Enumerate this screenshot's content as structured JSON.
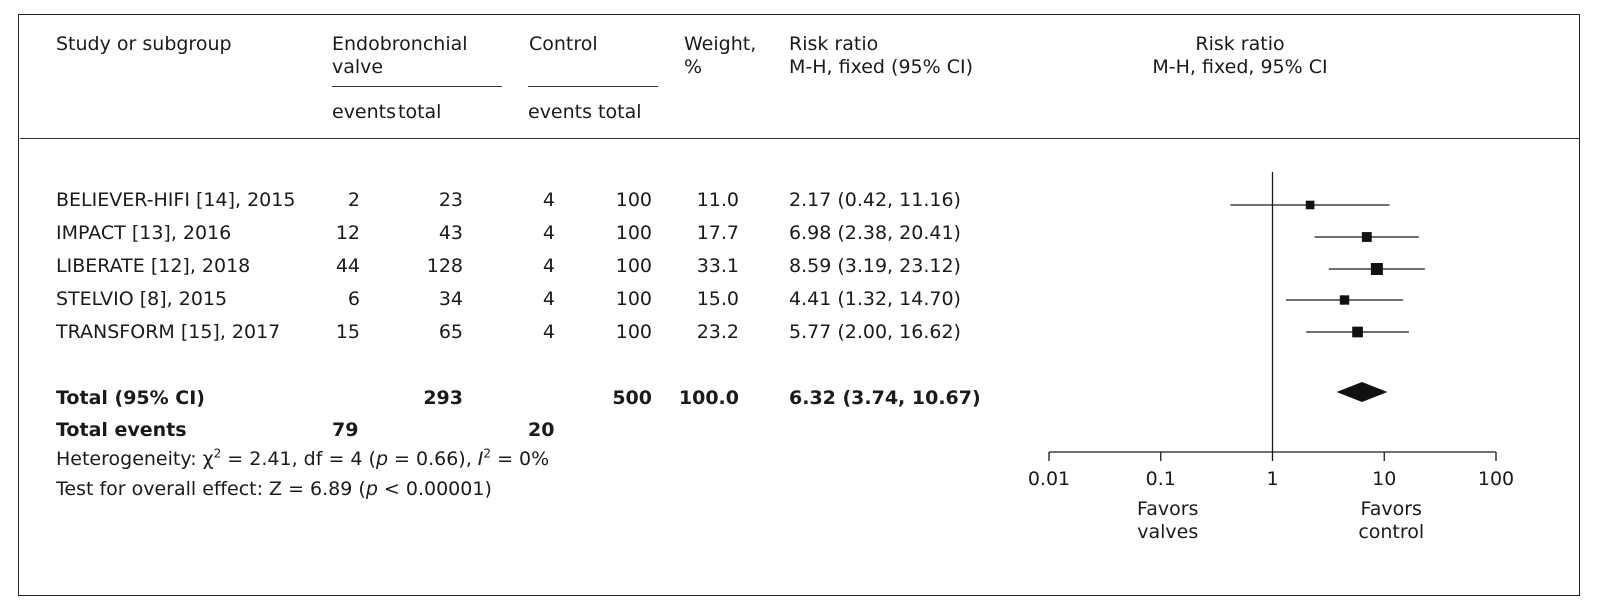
{
  "headers": {
    "study": "Study or subgroup",
    "ebv_line1": "Endobronchial",
    "ebv_line2": "valve",
    "control": "Control",
    "weight_line1": "Weight,",
    "weight_line2": "%",
    "rr_line1": "Risk ratio",
    "rr_line2": "M-H, fixed (95% CI)",
    "plot_line1": "Risk ratio",
    "plot_line2": "M-H, fixed, 95% CI",
    "events": "events",
    "total": "total",
    "events_total": "events total"
  },
  "rows": [
    {
      "study": "BELIEVER-HIFI [14], 2015",
      "ebv_events": "2",
      "ebv_total": "23",
      "ctrl_events": "4",
      "ctrl_total": "100",
      "weight": "11.0",
      "rr": "2.17 (0.42, 11.16)"
    },
    {
      "study": "IMPACT [13], 2016",
      "ebv_events": "12",
      "ebv_total": "43",
      "ctrl_events": "4",
      "ctrl_total": "100",
      "weight": "17.7",
      "rr": "6.98 (2.38, 20.41)"
    },
    {
      "study": "LIBERATE [12], 2018",
      "ebv_events": "44",
      "ebv_total": "128",
      "ctrl_events": "4",
      "ctrl_total": "100",
      "weight": "33.1",
      "rr": "8.59 (3.19, 23.12)"
    },
    {
      "study": "STELVIO [8], 2015",
      "ebv_events": "6",
      "ebv_total": "34",
      "ctrl_events": "4",
      "ctrl_total": "100",
      "weight": "15.0",
      "rr": "4.41 (1.32, 14.70)"
    },
    {
      "study": "TRANSFORM [15], 2017",
      "ebv_events": "15",
      "ebv_total": "65",
      "ctrl_events": "4",
      "ctrl_total": "100",
      "weight": "23.2",
      "rr": "5.77 (2.00, 16.62)"
    }
  ],
  "total_row": {
    "label": "Total (95% CI)",
    "ebv_total": "293",
    "ctrl_total": "500",
    "weight": "100.0",
    "rr": "6.32 (3.74, 10.67)"
  },
  "events_row": {
    "label": "Total events",
    "ebv_events": "79",
    "ctrl_events": "20"
  },
  "footer": {
    "het_a": "Heterogeneity: χ",
    "het_sup": "2",
    "het_b": " = 2.41, df = 4 (",
    "het_p": "p",
    "het_c": " = 0.66), ",
    "het_i": "I",
    "het_isup": "2",
    "het_d": " = 0%",
    "test_a": "Test for overall effect: Z = 6.89 (",
    "test_p": "p",
    "test_b": " < 0.00001)"
  },
  "chart_data": {
    "type": "scatter",
    "title": "",
    "xlabel": "Risk ratio (M-H, fixed, 95% CI)",
    "x_scale": "log",
    "xlim": [
      0.01,
      100
    ],
    "x_ticks": [
      0.01,
      0.1,
      1,
      10,
      100
    ],
    "x_tick_labels": [
      "0.01",
      "0.1",
      "1",
      "10",
      "100"
    ],
    "reference_line": 1,
    "left_label": "Favors valves",
    "right_label": "Favors control",
    "studies": [
      {
        "name": "BELIEVER-HIFI [14], 2015",
        "rr": 2.17,
        "lo": 0.42,
        "hi": 11.16,
        "weight": 11.0
      },
      {
        "name": "IMPACT [13], 2016",
        "rr": 6.98,
        "lo": 2.38,
        "hi": 20.41,
        "weight": 17.7
      },
      {
        "name": "LIBERATE [12], 2018",
        "rr": 8.59,
        "lo": 3.19,
        "hi": 23.12,
        "weight": 33.1
      },
      {
        "name": "STELVIO [8], 2015",
        "rr": 4.41,
        "lo": 1.32,
        "hi": 14.7,
        "weight": 15.0
      },
      {
        "name": "TRANSFORM [15], 2017",
        "rr": 5.77,
        "lo": 2.0,
        "hi": 16.62,
        "weight": 23.2
      }
    ],
    "pooled": {
      "rr": 6.32,
      "lo": 3.74,
      "hi": 10.67
    }
  },
  "colors": {
    "ink": "#1a1a1a",
    "marker": "#111111"
  }
}
